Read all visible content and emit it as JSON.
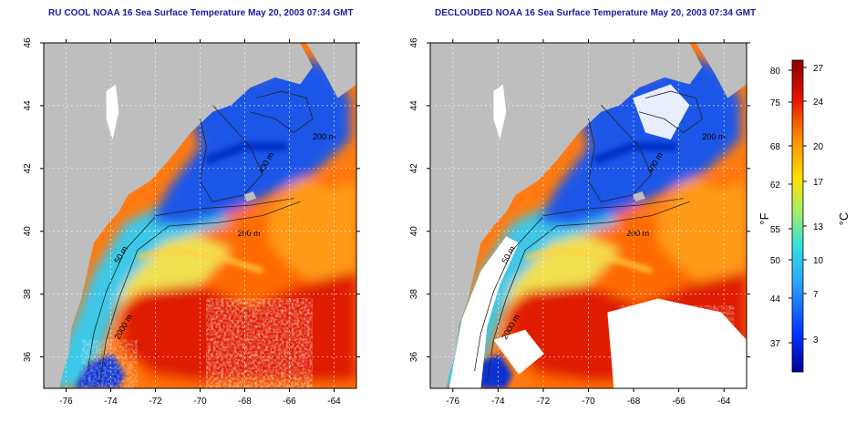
{
  "panels": [
    {
      "title": "RU COOL NOAA 16 Sea Surface Temperature May 20, 2003 07:34 GMT",
      "clouds": "cloudy",
      "contour_labels": [
        "200 m",
        "400 m",
        "200 m",
        "50 m",
        "2000 m"
      ]
    },
    {
      "title": "DECLOUDED NOAA 16 Sea Surface Temperature May 20, 2003 07:34 GMT",
      "clouds": "masked",
      "contour_labels": [
        "200 m",
        "400 m",
        "200 m",
        "50 m",
        "2000 m"
      ]
    }
  ],
  "map": {
    "lon_range": [
      -77,
      -63
    ],
    "lat_range": [
      35,
      46
    ],
    "x_ticks": [
      "-76",
      "-74",
      "-72",
      "-70",
      "-68",
      "-66",
      "-64"
    ],
    "y_ticks": [
      "36",
      "38",
      "40",
      "42",
      "44",
      "46"
    ]
  },
  "colorbar": {
    "unit_f": "°F",
    "unit_c": "°C",
    "fahrenheit_ticks": [
      "80",
      "75",
      "68",
      "62",
      "55",
      "50",
      "44",
      "37"
    ],
    "celsius_ticks": [
      "27",
      "24",
      "20",
      "17",
      "13",
      "10",
      "7",
      "3"
    ],
    "colors": [
      "#00009a",
      "#0033ff",
      "#2aa0ff",
      "#30e0e0",
      "#a8f060",
      "#ffe000",
      "#ff8c00",
      "#e81000",
      "#8a0000"
    ]
  },
  "colors": {
    "land": "#bebebe",
    "title": "#1a1aa0"
  }
}
